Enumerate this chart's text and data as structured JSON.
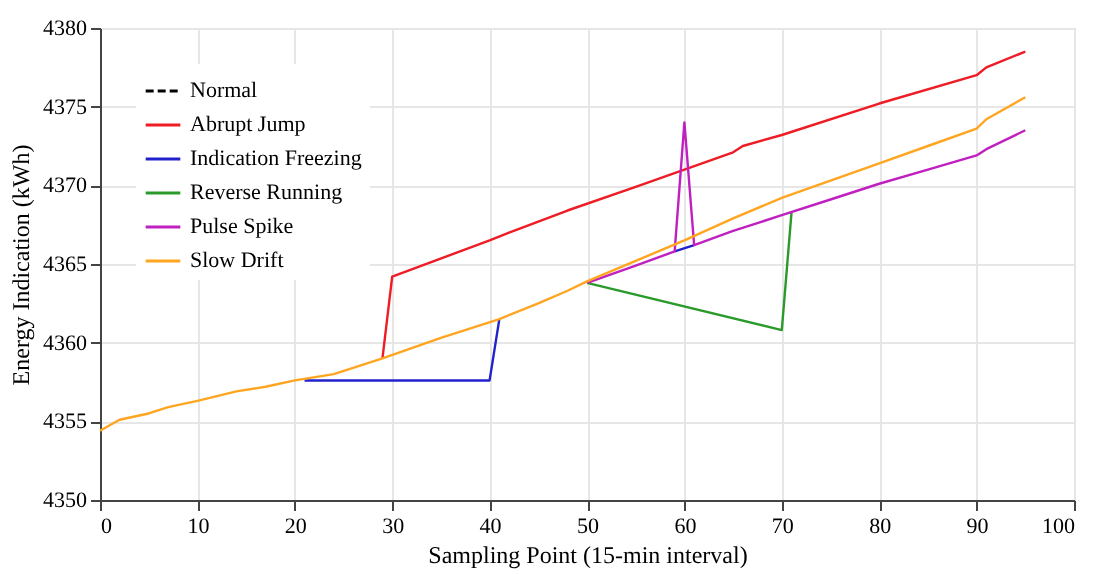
{
  "chart_data": {
    "type": "line",
    "xlabel": "Sampling Point (15-min interval)",
    "ylabel": "Energy Indication (kWh)",
    "xlim": [
      0,
      100
    ],
    "xticks": [
      0,
      10,
      20,
      30,
      40,
      50,
      60,
      70,
      80,
      90,
      100
    ],
    "ylim": [
      4350,
      4380
    ],
    "yticks": [
      4350,
      4355,
      4360,
      4365,
      4370,
      4375,
      4380
    ],
    "grid": true,
    "legend": "top left",
    "marker": "none",
    "series": [
      {
        "name": "Normal",
        "color": "#000000",
        "line_style": "dashed"
      },
      {
        "name": "Abrupt Jump",
        "color": "#ee1c25",
        "line_style": "solid",
        "x": [
          29,
          30,
          40,
          42,
          48,
          55,
          60,
          65,
          66,
          70,
          80,
          90,
          91,
          95
        ],
        "values": [
          4359.0,
          4364.2,
          4366.5,
          4367.0,
          4368.4,
          4369.9,
          4371.0,
          4372.1,
          4372.5,
          4373.2,
          4375.2,
          4377.0,
          4377.5,
          4378.5
        ]
      },
      {
        "name": "Indication Freezing",
        "color": "#2222cc",
        "line_style": "solid",
        "x": [
          21,
          40,
          41,
          50,
          59,
          61
        ],
        "values": [
          4357.6,
          4357.6,
          4361.5,
          null,
          4365.8,
          4366.2
        ]
      },
      {
        "name": "Reverse Running",
        "color": "#2a9a2a",
        "line_style": "solid",
        "x": [
          50,
          70,
          71
        ],
        "values": [
          4363.8,
          4360.8,
          4368.3
        ]
      },
      {
        "name": "Pulse Spike",
        "color": "#c020c0",
        "line_style": "solid",
        "x": [
          50,
          55,
          59,
          60,
          61,
          65,
          70,
          75,
          80,
          85,
          90,
          91,
          95
        ],
        "values": [
          4363.8,
          4364.9,
          4365.8,
          4374.0,
          4366.2,
          4367.1,
          4368.1,
          4369.1,
          4370.1,
          4371.0,
          4371.9,
          4372.3,
          4373.5
        ]
      },
      {
        "name": "Slow Drift",
        "color": "#ffa520",
        "line_style": "solid",
        "x": [
          0,
          2,
          5,
          7,
          10,
          14,
          17,
          20,
          24,
          29,
          35,
          41,
          45,
          48,
          50,
          55,
          60,
          65,
          70,
          75,
          80,
          85,
          90,
          91,
          95
        ],
        "values": [
          4354.4,
          4355.1,
          4355.5,
          4355.9,
          4356.3,
          4356.9,
          4357.2,
          4357.6,
          4358.0,
          4359.0,
          4360.3,
          4361.5,
          4362.5,
          4363.3,
          4363.9,
          4365.2,
          4366.5,
          4367.9,
          4369.2,
          4370.3,
          4371.4,
          4372.5,
          4373.6,
          4374.2,
          4375.6
        ]
      }
    ]
  }
}
